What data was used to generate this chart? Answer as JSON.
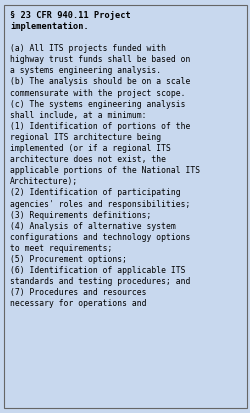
{
  "background_color": "#c8d8ee",
  "border_color": "#666666",
  "text_color": "#000000",
  "title_bold": "§ 23 CFR 940.11 Project\nimplementation.",
  "body_text": "(a) All ITS projects funded with\nhighway trust funds shall be based on\na systems engineering analysis.\n(b) The analysis should be on a scale\ncommensurate with the project scope.\n(c) The systems engineering analysis\nshall include, at a minimum:\n(1) Identification of portions of the\nregional ITS architecture being\nimplemented (or if a regional ITS\narchitecture does not exist, the\napplicable portions of the National ITS\nArchitecture);\n(2) Identification of participating\nagencies' roles and responsibilities;\n(3) Requirements definitions;\n(4) Analysis of alternative system\nconfigurations and technology options\nto meet requirements;\n(5) Procurement options;\n(6) Identification of applicable ITS\nstandards and testing procedures; and\n(7) Procedures and resources\nnecessary for operations and",
  "font_family": "monospace",
  "title_fontsize": 6.2,
  "body_fontsize": 5.8,
  "fig_width": 2.51,
  "fig_height": 4.13,
  "dpi": 100
}
